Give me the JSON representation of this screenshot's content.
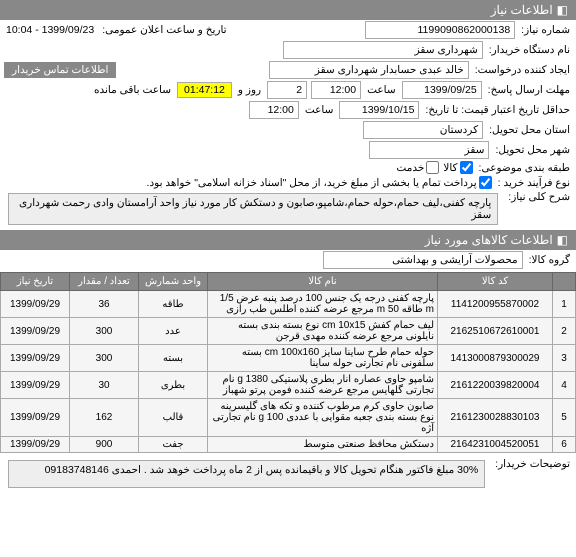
{
  "header": {
    "title": "اطلاعات نیاز",
    "icon": "◧"
  },
  "fields": {
    "need_number_label": "شماره نیاز:",
    "need_number": "1199090862000138",
    "announce_label": "تاریخ و ساعت اعلان عمومی:",
    "announce_value": "1399/09/23 - 10:04",
    "buyer_label": "نام دستگاه خریدار:",
    "buyer_value": "شهرداری سقز",
    "creator_label": "ایجاد کننده درخواست:",
    "creator_value": "خالد عبدی حسابدار شهرداری سقز",
    "contact_btn": "اطلاعات تماس خریدار",
    "deadline_label": "مهلت ارسال پاسخ:",
    "deadline_date": "1399/09/25",
    "time_label": "ساعت",
    "deadline_time": "12:00",
    "days_field": "2",
    "and_label": "روز و",
    "timer": "01:47:12",
    "remain_label": "ساعت باقی مانده",
    "credit_deadline_label": "حداقل تاریخ اعتبار قیمت: تا تاریخ:",
    "credit_date": "1399/10/15",
    "credit_time": "12:00",
    "province_label": "استان محل تحویل:",
    "province_value": "کردستان",
    "city_label": "شهر محل تحویل:",
    "city_value": "سقز",
    "budget_label": "طبقه بندی موضوعی:",
    "budget_goods": "کالا",
    "budget_service": "خدمت",
    "buy_type_label": "نوع فرآیند خرید :",
    "payment_note": "پرداخت تمام یا بخشی از مبلغ خرید، از محل \"اسناد خزانه اسلامی\" خواهد بود.",
    "desc_label": "شرح کلی نیاز:",
    "desc_value": "پارچه کفنی،لیف حمام،حوله حمام،شامپو،صابون و دستکش کار مورد نیاز واحد آرامستان وادی رحمت شهرداری سقز",
    "goods_header": "اطلاعات کالاهای مورد نیاز",
    "group_label": "گروه کالا:",
    "group_value": "محصولات آرایشی و بهداشتی",
    "buyer_notes_label": "توضیحات خریدار:",
    "buyer_notes_value": "30% مبلغ فاکتور هنگام تحویل کالا و باقیمانده پس از 2 ماه پرداخت خوهد شد . احمدی 09183748146"
  },
  "table": {
    "columns": [
      "",
      "کد کالا",
      "نام کالا",
      "واحد شمارش",
      "تعداد / مقدار",
      "تاریخ نیاز"
    ],
    "rows": [
      [
        "1",
        "1141200955870002",
        "پارچه کفنی درجه یک جنس 100 درصد پنبه عرض 1/5 m طاقه 50 m مرجع عرضه کننده اطلس طب رازی",
        "طاقه",
        "36",
        "1399/09/29"
      ],
      [
        "2",
        "2162510672610001",
        "لیف حمام کفش cm 10x15 نوع بسته بندی بسته نایلونی مرجع عرضه کننده مهدی قرجن",
        "عدد",
        "300",
        "1399/09/29"
      ],
      [
        "3",
        "1413000879300029",
        "حوله حمام طرح ساینا سایز cm 100x160 بسته سلفونی نام تجارتی حوله ساینا",
        "بسته",
        "300",
        "1399/09/29"
      ],
      [
        "4",
        "2161220039820004",
        "شامپو حاوی عصاره انار بطری پلاستیکی g 1380 نام تجارتی گلهایس مرجع عرضه کننده فومن پرتو شهباز",
        "بطری",
        "30",
        "1399/09/29"
      ],
      [
        "5",
        "2161230028830103",
        "صابون حاوی کرم مرطوب کننده و تکه های گلیسرینه نوع بسته بندی جعبه مقوایی با عددی g 100 نام تجارتی آژه",
        "قالب",
        "162",
        "1399/09/29"
      ],
      [
        "6",
        "2164231004520051",
        "دستکش محافظ صنعتی متوسط",
        "جفت",
        "900",
        "1399/09/29"
      ]
    ],
    "col_widths": [
      "4%",
      "20%",
      "40%",
      "12%",
      "12%",
      "12%"
    ]
  }
}
